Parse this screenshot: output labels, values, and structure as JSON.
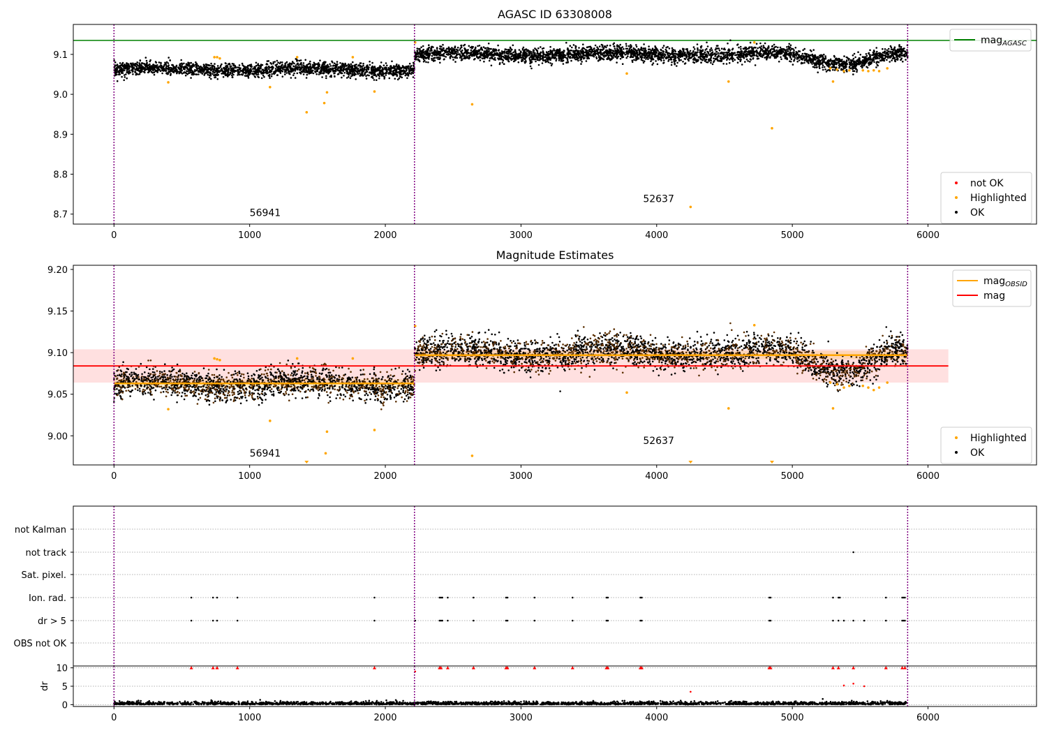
{
  "chart_data": [
    {
      "id": "agasc",
      "type": "scatter",
      "title": "AGASC ID 63308008",
      "xlim": [
        -300,
        6800
      ],
      "ylim": [
        8.675,
        9.175
      ],
      "x_ticks": [
        0,
        1000,
        2000,
        3000,
        4000,
        5000,
        6000
      ],
      "y_ticks": [
        8.7,
        8.8,
        8.9,
        9.0,
        9.1
      ],
      "vlines": [
        0,
        2215,
        5850
      ],
      "hlines": [
        {
          "name": "mag_AGASC",
          "y": 9.135,
          "color": "#008000"
        }
      ],
      "segments": [
        {
          "x": [
            0,
            2215
          ],
          "level": 9.062,
          "spread": 0.022
        },
        {
          "x": [
            2215,
            5850
          ],
          "level": 9.1,
          "spread": 0.024,
          "dip": {
            "x": [
              5000,
              5700
            ],
            "level": 9.08
          }
        }
      ],
      "highlighted_points": [
        [
          400,
          9.03
        ],
        [
          740,
          9.093
        ],
        [
          760,
          9.093
        ],
        [
          780,
          9.09
        ],
        [
          1150,
          9.018
        ],
        [
          1350,
          9.093
        ],
        [
          1420,
          8.955
        ],
        [
          1550,
          8.978
        ],
        [
          1570,
          9.005
        ],
        [
          1760,
          9.093
        ],
        [
          1920,
          9.007
        ],
        [
          2220,
          9.13
        ],
        [
          2640,
          8.975
        ],
        [
          3780,
          9.052
        ],
        [
          4250,
          8.718
        ],
        [
          4530,
          9.032
        ],
        [
          4720,
          9.13
        ],
        [
          4850,
          8.915
        ],
        [
          5300,
          9.032
        ],
        [
          5280,
          9.065
        ],
        [
          5330,
          9.062
        ],
        [
          5380,
          9.058
        ],
        [
          5420,
          9.06
        ],
        [
          5520,
          9.06
        ],
        [
          5560,
          9.058
        ],
        [
          5600,
          9.06
        ],
        [
          5640,
          9.058
        ],
        [
          5700,
          9.065
        ]
      ],
      "annotations": [
        {
          "x": 1000,
          "y": 8.695,
          "text": "56941"
        },
        {
          "x": 3900,
          "y": 8.73,
          "text": "52637"
        }
      ],
      "legend_top": [
        {
          "label": "mag",
          "sub": "AGASC",
          "color": "#008000"
        }
      ],
      "legend_bottom": [
        {
          "label": "not OK",
          "color": "#ff0000"
        },
        {
          "label": "Highlighted",
          "color": "#ffa500"
        },
        {
          "label": "OK",
          "color": "#000000"
        }
      ]
    },
    {
      "id": "estimates",
      "type": "scatter",
      "title": "Magnitude Estimates",
      "xlim": [
        -300,
        6800
      ],
      "ylim": [
        8.965,
        9.205
      ],
      "x_ticks": [
        0,
        1000,
        2000,
        3000,
        4000,
        5000,
        6000
      ],
      "y_ticks": [
        9.0,
        9.05,
        9.1,
        9.15,
        9.2
      ],
      "y_tick_labels": [
        "9.00",
        "9.05",
        "9.10",
        "9.15",
        "9.20"
      ],
      "vlines": [
        0,
        2215,
        5850
      ],
      "mag_line": {
        "name": "mag",
        "y": 9.084,
        "band": [
          9.064,
          9.104
        ],
        "x": [
          -300,
          6150
        ],
        "color": "#ff0000"
      },
      "mag_obsid": [
        {
          "x": [
            0,
            2215
          ],
          "y": 9.063,
          "band": [
            9.058,
            9.068
          ]
        },
        {
          "x": [
            2215,
            5850
          ],
          "y": 9.097,
          "band": [
            9.092,
            9.102
          ]
        }
      ],
      "segments": [
        {
          "x": [
            0,
            2215
          ],
          "level": 9.062,
          "spread": 0.022
        },
        {
          "x": [
            2215,
            5850
          ],
          "level": 9.1,
          "spread": 0.024,
          "dip": {
            "x": [
              5000,
              5700
            ],
            "level": 9.08
          }
        }
      ],
      "highlighted_points": [
        [
          400,
          9.032
        ],
        [
          740,
          9.093
        ],
        [
          760,
          9.092
        ],
        [
          780,
          9.091
        ],
        [
          1150,
          9.018
        ],
        [
          1350,
          9.093
        ],
        [
          1560,
          8.979
        ],
        [
          1570,
          9.005
        ],
        [
          1760,
          9.093
        ],
        [
          1920,
          9.007
        ],
        [
          2220,
          9.132
        ],
        [
          2640,
          8.976
        ],
        [
          3780,
          9.052
        ],
        [
          4530,
          9.033
        ],
        [
          4720,
          9.133
        ],
        [
          5300,
          9.033
        ],
        [
          5280,
          9.064
        ],
        [
          5330,
          9.062
        ],
        [
          5380,
          9.058
        ],
        [
          5420,
          9.06
        ],
        [
          5520,
          9.06
        ],
        [
          5560,
          9.058
        ],
        [
          5600,
          9.055
        ],
        [
          5640,
          9.058
        ],
        [
          5700,
          9.064
        ]
      ],
      "offscale_points": [
        [
          1420,
          8.967
        ],
        [
          4250,
          8.967
        ],
        [
          4850,
          8.967
        ]
      ],
      "annotations": [
        {
          "x": 1000,
          "y": 8.975,
          "text": "56941"
        },
        {
          "x": 3900,
          "y": 8.99,
          "text": "52637"
        }
      ],
      "legend_top": [
        {
          "label": "mag",
          "sub": "OBSID",
          "color": "#ffa500"
        },
        {
          "label": "mag",
          "sub": "",
          "color": "#ff0000"
        }
      ],
      "legend_bottom": [
        {
          "label": "Highlighted",
          "color": "#ffa500"
        },
        {
          "label": "OK",
          "color": "#000000"
        }
      ]
    },
    {
      "id": "flags",
      "type": "scatter",
      "title": "",
      "xlim": [
        -300,
        6800
      ],
      "vlines": [
        0,
        2215,
        5850
      ],
      "categories": [
        "not Kalman",
        "not track",
        "Sat. pixel.",
        "Ion. rad.",
        "dr > 5",
        "OBS not OK"
      ],
      "flag_points": {
        "not track": [
          5450
        ],
        "Ion. rad.": [
          570,
          730,
          760,
          910,
          1920,
          2400,
          2410,
          2420,
          2460,
          2650,
          2890,
          2900,
          3100,
          3380,
          3630,
          3640,
          3880,
          3890,
          4830,
          4840,
          5300,
          5340,
          5350,
          5690,
          5810,
          5820,
          5830
        ],
        "dr > 5": [
          570,
          730,
          760,
          910,
          1920,
          2220,
          2400,
          2410,
          2420,
          2460,
          2650,
          2890,
          2900,
          3100,
          3380,
          3630,
          3640,
          3880,
          3890,
          4830,
          4840,
          5300,
          5340,
          5380,
          5450,
          5530,
          5690,
          5810,
          5820,
          5830
        ]
      }
    },
    {
      "id": "dr",
      "type": "scatter",
      "title": "",
      "xlim": [
        -300,
        6800
      ],
      "ylim": [
        -0.5,
        10.5
      ],
      "ylabel": "dr",
      "y_ticks": [
        0,
        5,
        10
      ],
      "x_ticks": [
        0,
        1000,
        2000,
        3000,
        4000,
        5000,
        6000
      ],
      "vlines": [
        0,
        2215,
        5850
      ],
      "red_points": [
        [
          570,
          10
        ],
        [
          730,
          10
        ],
        [
          760,
          10
        ],
        [
          910,
          10
        ],
        [
          1920,
          10
        ],
        [
          2220,
          9
        ],
        [
          2400,
          10
        ],
        [
          2410,
          10
        ],
        [
          2460,
          10
        ],
        [
          2650,
          10
        ],
        [
          2890,
          10
        ],
        [
          2900,
          10
        ],
        [
          3100,
          10
        ],
        [
          3380,
          10
        ],
        [
          3630,
          10
        ],
        [
          3640,
          10
        ],
        [
          3880,
          10
        ],
        [
          3890,
          10
        ],
        [
          4830,
          10
        ],
        [
          4840,
          10
        ],
        [
          5300,
          10
        ],
        [
          5340,
          10
        ],
        [
          5450,
          10
        ],
        [
          5690,
          10
        ],
        [
          5810,
          10
        ],
        [
          5830,
          10
        ],
        [
          4250,
          3.5
        ],
        [
          5380,
          5.2
        ],
        [
          5450,
          5.7
        ],
        [
          5530,
          5.0
        ]
      ]
    }
  ]
}
